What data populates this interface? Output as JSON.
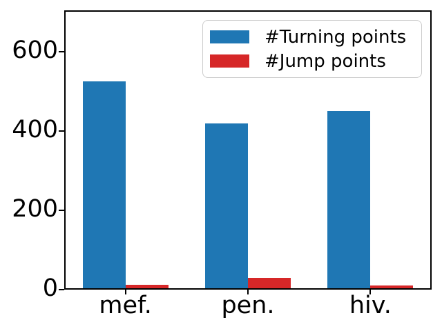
{
  "figure": {
    "background": "#ffffff",
    "axes_color": "#000000"
  },
  "chart_data": {
    "type": "bar",
    "categories": [
      "mef.",
      "pen.",
      "hiv."
    ],
    "series": [
      {
        "name": "#Turning points",
        "color": "#1f77b4",
        "values": [
          525,
          420,
          450
        ]
      },
      {
        "name": "#Jump points",
        "color": "#d62728",
        "values": [
          12,
          30,
          10
        ]
      }
    ],
    "title": "",
    "xlabel": "",
    "ylabel": "",
    "ylim": [
      0,
      705
    ],
    "yticks": [
      0,
      200,
      400,
      600
    ],
    "grid": false,
    "legend_position": "upper right"
  }
}
